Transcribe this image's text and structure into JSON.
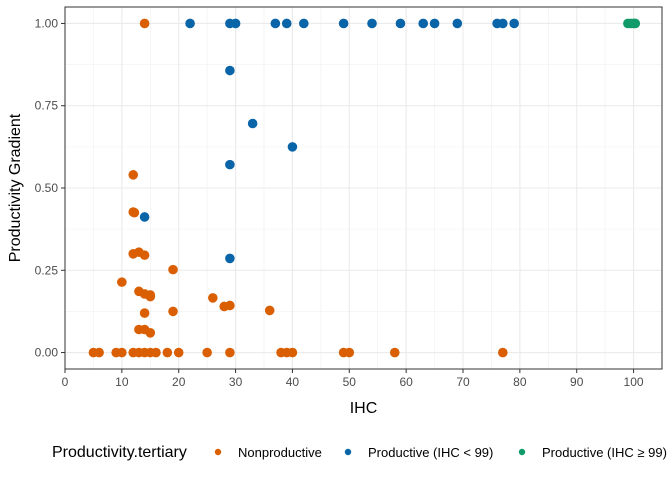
{
  "chart_data": {
    "type": "scatter",
    "xlabel": "IHC",
    "ylabel": "Productivity Gradient",
    "xlim": [
      0,
      105
    ],
    "ylim": [
      -0.05,
      1.05
    ],
    "x_ticks": [
      "0",
      "10",
      "20",
      "30",
      "40",
      "50",
      "60",
      "70",
      "80",
      "90",
      "100"
    ],
    "x_minor_ticks": [
      "5",
      "15",
      "25",
      "35",
      "45",
      "55",
      "65",
      "75",
      "85",
      "95"
    ],
    "y_ticks": [
      "0.00",
      "0.25",
      "0.50",
      "0.75",
      "1.00"
    ],
    "grid": true,
    "theme": "bw",
    "legend": {
      "position": "bottom",
      "title": "Productivity.tertiary",
      "entries": [
        "Nonproductive",
        "Productive (IHC < 99)",
        "Productive (IHC ≥ 99)"
      ]
    },
    "series": [
      {
        "name": "Nonproductive",
        "color": "#d95f02",
        "points": [
          [
            14,
            1.0
          ],
          [
            12,
            0.54
          ],
          [
            12,
            0.427
          ],
          [
            12.2,
            0.425
          ],
          [
            12,
            0.3
          ],
          [
            13,
            0.305
          ],
          [
            14,
            0.296
          ],
          [
            10,
            0.214
          ],
          [
            19,
            0.252
          ],
          [
            13,
            0.186
          ],
          [
            14,
            0.178
          ],
          [
            15,
            0.175
          ],
          [
            15,
            0.17
          ],
          [
            26,
            0.166
          ],
          [
            28,
            0.14
          ],
          [
            29,
            0.143
          ],
          [
            36,
            0.128
          ],
          [
            14,
            0.12
          ],
          [
            19,
            0.125
          ],
          [
            13,
            0.07
          ],
          [
            14,
            0.07
          ],
          [
            15,
            0.06
          ],
          [
            5,
            0
          ],
          [
            6,
            0
          ],
          [
            9,
            0
          ],
          [
            10,
            0
          ],
          [
            12,
            0
          ],
          [
            13,
            0
          ],
          [
            14,
            0
          ],
          [
            15,
            0
          ],
          [
            16,
            0
          ],
          [
            18,
            0
          ],
          [
            20,
            0
          ],
          [
            25,
            0
          ],
          [
            29,
            0
          ],
          [
            38,
            0
          ],
          [
            39,
            0
          ],
          [
            40,
            0
          ],
          [
            49,
            0
          ],
          [
            50,
            0
          ],
          [
            58,
            0
          ],
          [
            77,
            0
          ]
        ]
      },
      {
        "name": "Productive (IHC < 99)",
        "color": "#0a64a8",
        "points": [
          [
            22,
            1.0
          ],
          [
            29,
            1.0
          ],
          [
            30,
            1.0
          ],
          [
            37,
            1.0
          ],
          [
            39,
            1.0
          ],
          [
            42,
            1.0
          ],
          [
            49,
            1.0
          ],
          [
            54,
            1.0
          ],
          [
            59,
            1.0
          ],
          [
            63,
            1.0
          ],
          [
            65,
            1.0
          ],
          [
            69,
            1.0
          ],
          [
            76,
            1.0
          ],
          [
            77,
            1.0
          ],
          [
            79,
            1.0
          ],
          [
            29,
            0.857
          ],
          [
            33,
            0.696
          ],
          [
            40,
            0.625
          ],
          [
            29,
            0.571
          ],
          [
            14,
            0.412
          ],
          [
            29,
            0.286
          ]
        ]
      },
      {
        "name": "Productive (IHC ≥ 99)",
        "color": "#119a6a",
        "points": [
          [
            99,
            1.0
          ],
          [
            99.5,
            1.0
          ],
          [
            100,
            1.0
          ],
          [
            100.3,
            1.0
          ]
        ]
      }
    ]
  }
}
